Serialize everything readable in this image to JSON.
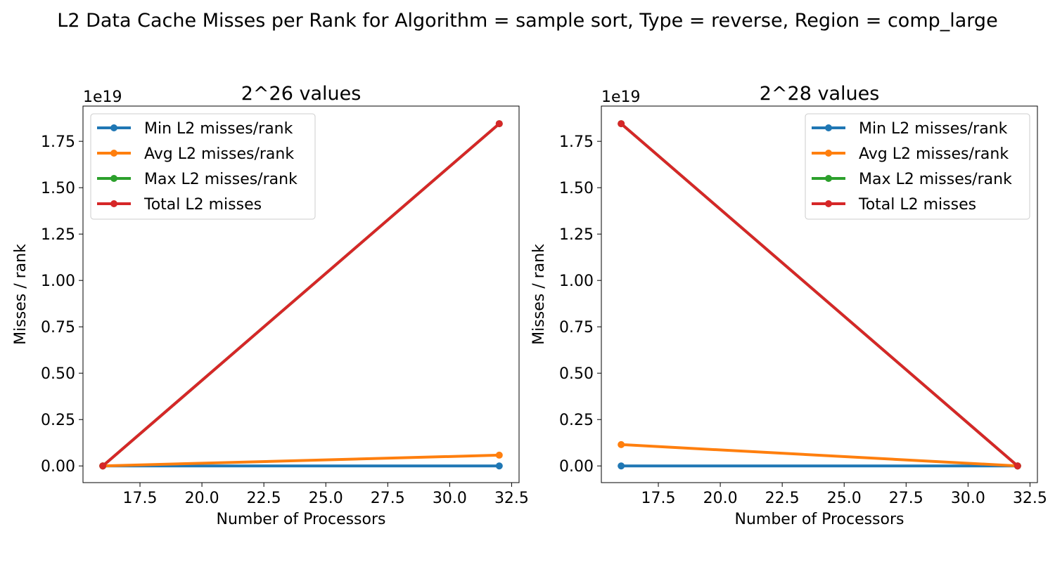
{
  "suptitle": "L2 Data Cache Misses per Rank for Algorithm = sample sort, Type = reverse, Region = comp_large",
  "colors": {
    "min": "#1f77b4",
    "avg": "#ff7f0e",
    "max": "#2ca02c",
    "total": "#d62728"
  },
  "chart_data": [
    {
      "type": "line",
      "title": "2^26 values",
      "xlabel": "Number of Processors",
      "ylabel": "Misses / rank",
      "y_offset_label": "1e19",
      "xlim": [
        15.2,
        32.8
      ],
      "ylim": [
        -0.09,
        1.94
      ],
      "xticks": [
        "17.5",
        "20.0",
        "22.5",
        "25.0",
        "27.5",
        "30.0",
        "32.5"
      ],
      "yticks": [
        "0.00",
        "0.25",
        "0.50",
        "0.75",
        "1.00",
        "1.25",
        "1.50",
        "1.75"
      ],
      "legend_loc": "upper left",
      "x": [
        16,
        32
      ],
      "series": [
        {
          "name": "Min L2 misses/rank",
          "color": "#1f77b4",
          "values": [
            0.0,
            0.0
          ]
        },
        {
          "name": "Avg L2 misses/rank",
          "color": "#ff7f0e",
          "values": [
            0.0,
            0.058
          ]
        },
        {
          "name": "Max L2 misses/rank",
          "color": "#2ca02c",
          "values": [
            0.0,
            1.845
          ]
        },
        {
          "name": "Total L2 misses",
          "color": "#d62728",
          "values": [
            0.0,
            1.845
          ]
        }
      ]
    },
    {
      "type": "line",
      "title": "2^28 values",
      "xlabel": "Number of Processors",
      "ylabel": "Misses / rank",
      "y_offset_label": "1e19",
      "xlim": [
        15.2,
        32.8
      ],
      "ylim": [
        -0.09,
        1.94
      ],
      "xticks": [
        "17.5",
        "20.0",
        "22.5",
        "25.0",
        "27.5",
        "30.0",
        "32.5"
      ],
      "yticks": [
        "0.00",
        "0.25",
        "0.50",
        "0.75",
        "1.00",
        "1.25",
        "1.50",
        "1.75"
      ],
      "legend_loc": "upper right",
      "x": [
        16,
        32
      ],
      "series": [
        {
          "name": "Min L2 misses/rank",
          "color": "#1f77b4",
          "values": [
            0.0,
            0.0
          ]
        },
        {
          "name": "Avg L2 misses/rank",
          "color": "#ff7f0e",
          "values": [
            0.115,
            0.0
          ]
        },
        {
          "name": "Max L2 misses/rank",
          "color": "#2ca02c",
          "values": [
            1.845,
            0.0
          ]
        },
        {
          "name": "Total L2 misses",
          "color": "#d62728",
          "values": [
            1.845,
            0.0
          ]
        }
      ]
    }
  ]
}
